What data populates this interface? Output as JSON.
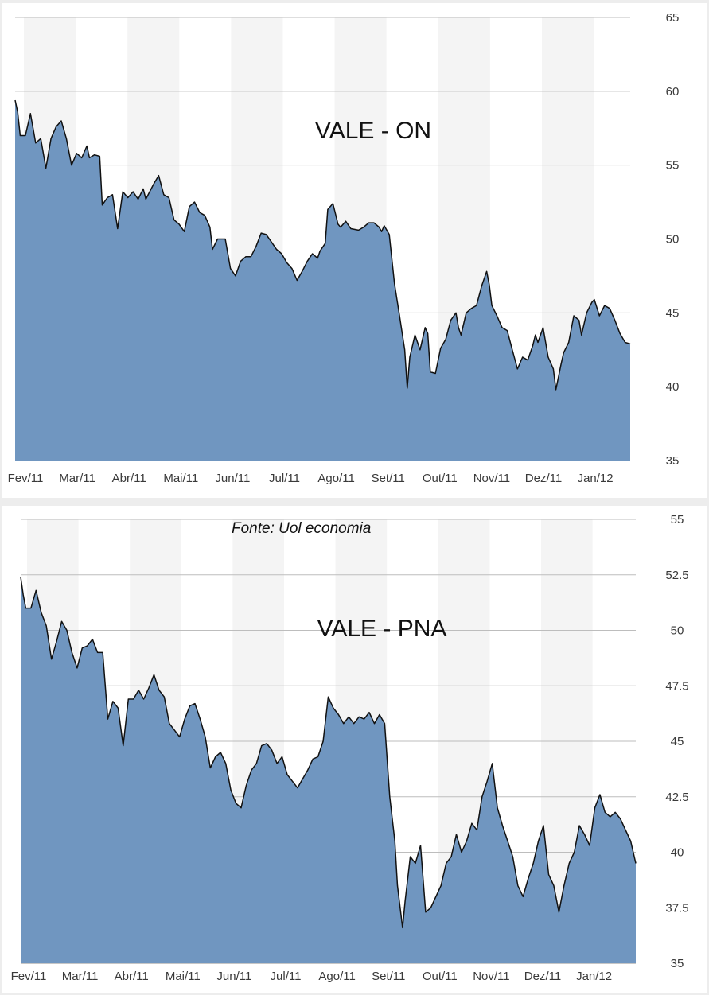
{
  "source_note": "Fonte: Uol economia",
  "colors": {
    "area_fill": "#7096c0",
    "line": "#111111",
    "band": "#f4f4f4",
    "grid": "#bdbdbd"
  },
  "chart_data": [
    {
      "type": "area",
      "title": "VALE - ON",
      "months": [
        "Fev/11",
        "Mar/11",
        "Abr/11",
        "Mai/11",
        "Jun/11",
        "Jul/11",
        "Ago/11",
        "Set/11",
        "Out/11",
        "Nov/11",
        "Dez/11",
        "Jan/12"
      ],
      "yticks": [
        "35",
        "40",
        "45",
        "50",
        "55",
        "60",
        "65"
      ],
      "ylim": [
        35,
        65
      ],
      "x_range": [
        -0.2,
        11.8
      ],
      "grid": true,
      "series": [
        {
          "points": [
            [
              -0.2,
              59.4
            ],
            [
              -0.15,
              58.6
            ],
            [
              -0.1,
              57.0
            ],
            [
              0.0,
              57.0
            ],
            [
              0.1,
              58.5
            ],
            [
              0.2,
              56.5
            ],
            [
              0.3,
              56.8
            ],
            [
              0.4,
              54.8
            ],
            [
              0.5,
              56.8
            ],
            [
              0.6,
              57.6
            ],
            [
              0.7,
              58.0
            ],
            [
              0.8,
              56.8
            ],
            [
              0.9,
              55.0
            ],
            [
              1.0,
              55.8
            ],
            [
              1.1,
              55.5
            ],
            [
              1.2,
              56.3
            ],
            [
              1.25,
              55.5
            ],
            [
              1.35,
              55.7
            ],
            [
              1.45,
              55.6
            ],
            [
              1.5,
              52.3
            ],
            [
              1.6,
              52.8
            ],
            [
              1.7,
              53.0
            ],
            [
              1.8,
              50.7
            ],
            [
              1.9,
              53.2
            ],
            [
              2.0,
              52.8
            ],
            [
              2.1,
              53.2
            ],
            [
              2.2,
              52.7
            ],
            [
              2.3,
              53.4
            ],
            [
              2.35,
              52.7
            ],
            [
              2.5,
              53.7
            ],
            [
              2.6,
              54.3
            ],
            [
              2.7,
              53.0
            ],
            [
              2.8,
              52.8
            ],
            [
              2.9,
              51.3
            ],
            [
              3.0,
              51.0
            ],
            [
              3.1,
              50.5
            ],
            [
              3.2,
              52.2
            ],
            [
              3.3,
              52.5
            ],
            [
              3.4,
              51.8
            ],
            [
              3.5,
              51.6
            ],
            [
              3.6,
              50.8
            ],
            [
              3.65,
              49.3
            ],
            [
              3.75,
              50.0
            ],
            [
              3.9,
              50.0
            ],
            [
              4.0,
              48.0
            ],
            [
              4.1,
              47.5
            ],
            [
              4.2,
              48.5
            ],
            [
              4.3,
              48.8
            ],
            [
              4.4,
              48.8
            ],
            [
              4.5,
              49.5
            ],
            [
              4.6,
              50.4
            ],
            [
              4.7,
              50.3
            ],
            [
              4.8,
              49.8
            ],
            [
              4.9,
              49.3
            ],
            [
              5.0,
              49.0
            ],
            [
              5.1,
              48.4
            ],
            [
              5.2,
              48.0
            ],
            [
              5.3,
              47.2
            ],
            [
              5.4,
              47.8
            ],
            [
              5.5,
              48.5
            ],
            [
              5.6,
              49.0
            ],
            [
              5.7,
              48.7
            ],
            [
              5.75,
              49.2
            ],
            [
              5.85,
              49.7
            ],
            [
              5.9,
              52.0
            ],
            [
              6.0,
              52.4
            ],
            [
              6.1,
              51.0
            ],
            [
              6.15,
              50.8
            ],
            [
              6.25,
              51.2
            ],
            [
              6.35,
              50.7
            ],
            [
              6.5,
              50.6
            ],
            [
              6.6,
              50.8
            ],
            [
              6.7,
              51.1
            ],
            [
              6.8,
              51.1
            ],
            [
              6.9,
              50.8
            ],
            [
              6.95,
              50.5
            ],
            [
              7.0,
              50.9
            ],
            [
              7.1,
              50.3
            ],
            [
              7.2,
              47.0
            ],
            [
              7.3,
              44.8
            ],
            [
              7.4,
              42.5
            ],
            [
              7.45,
              39.9
            ],
            [
              7.5,
              42.0
            ],
            [
              7.6,
              43.5
            ],
            [
              7.7,
              42.5
            ],
            [
              7.8,
              44.0
            ],
            [
              7.85,
              43.6
            ],
            [
              7.9,
              41.0
            ],
            [
              8.0,
              40.9
            ],
            [
              8.1,
              42.6
            ],
            [
              8.2,
              43.2
            ],
            [
              8.3,
              44.5
            ],
            [
              8.4,
              45.0
            ],
            [
              8.45,
              44.0
            ],
            [
              8.5,
              43.5
            ],
            [
              8.6,
              45.0
            ],
            [
              8.7,
              45.3
            ],
            [
              8.8,
              45.5
            ],
            [
              8.9,
              46.8
            ],
            [
              9.0,
              47.8
            ],
            [
              9.05,
              46.9
            ],
            [
              9.1,
              45.5
            ],
            [
              9.2,
              44.8
            ],
            [
              9.3,
              44.0
            ],
            [
              9.4,
              43.8
            ],
            [
              9.5,
              42.5
            ],
            [
              9.6,
              41.2
            ],
            [
              9.7,
              42.0
            ],
            [
              9.8,
              41.8
            ],
            [
              9.9,
              42.8
            ],
            [
              9.95,
              43.5
            ],
            [
              10.0,
              43.0
            ],
            [
              10.1,
              44.0
            ],
            [
              10.2,
              42.0
            ],
            [
              10.3,
              41.2
            ],
            [
              10.35,
              39.8
            ],
            [
              10.45,
              41.5
            ],
            [
              10.5,
              42.3
            ],
            [
              10.6,
              43.0
            ],
            [
              10.7,
              44.8
            ],
            [
              10.8,
              44.5
            ],
            [
              10.85,
              43.5
            ],
            [
              10.95,
              45.0
            ],
            [
              11.05,
              45.7
            ],
            [
              11.1,
              45.9
            ],
            [
              11.2,
              44.8
            ],
            [
              11.3,
              45.5
            ],
            [
              11.4,
              45.3
            ],
            [
              11.5,
              44.5
            ],
            [
              11.6,
              43.6
            ],
            [
              11.7,
              43.0
            ],
            [
              11.8,
              42.9
            ]
          ]
        }
      ]
    },
    {
      "type": "area",
      "title": "VALE - PNA",
      "months": [
        "Fev/11",
        "Mar/11",
        "Abr/11",
        "Mai/11",
        "Jun/11",
        "Jul/11",
        "Ago/11",
        "Set/11",
        "Out/11",
        "Nov/11",
        "Dez/11",
        "Jan/12"
      ],
      "yticks": [
        "35",
        "37.5",
        "40",
        "42.5",
        "45",
        "47.5",
        "50",
        "52.5",
        "55"
      ],
      "ylim": [
        35,
        55
      ],
      "x_range": [
        -0.2,
        11.8
      ],
      "grid": true,
      "series": [
        {
          "points": [
            [
              -0.2,
              52.4
            ],
            [
              -0.15,
              51.6
            ],
            [
              -0.1,
              51.0
            ],
            [
              0.0,
              51.0
            ],
            [
              0.1,
              51.8
            ],
            [
              0.2,
              50.8
            ],
            [
              0.3,
              50.2
            ],
            [
              0.4,
              48.7
            ],
            [
              0.5,
              49.5
            ],
            [
              0.6,
              50.4
            ],
            [
              0.7,
              50.0
            ],
            [
              0.8,
              49.0
            ],
            [
              0.9,
              48.3
            ],
            [
              1.0,
              49.2
            ],
            [
              1.1,
              49.3
            ],
            [
              1.2,
              49.6
            ],
            [
              1.3,
              49.0
            ],
            [
              1.4,
              49.0
            ],
            [
              1.5,
              46.0
            ],
            [
              1.6,
              46.8
            ],
            [
              1.7,
              46.5
            ],
            [
              1.8,
              44.8
            ],
            [
              1.9,
              46.9
            ],
            [
              2.0,
              46.9
            ],
            [
              2.1,
              47.3
            ],
            [
              2.2,
              46.9
            ],
            [
              2.3,
              47.4
            ],
            [
              2.4,
              48.0
            ],
            [
              2.5,
              47.3
            ],
            [
              2.6,
              47.0
            ],
            [
              2.7,
              45.8
            ],
            [
              2.8,
              45.5
            ],
            [
              2.9,
              45.2
            ],
            [
              3.0,
              46.0
            ],
            [
              3.1,
              46.6
            ],
            [
              3.2,
              46.7
            ],
            [
              3.3,
              46.0
            ],
            [
              3.4,
              45.2
            ],
            [
              3.5,
              43.8
            ],
            [
              3.6,
              44.3
            ],
            [
              3.7,
              44.5
            ],
            [
              3.8,
              44.0
            ],
            [
              3.9,
              42.8
            ],
            [
              4.0,
              42.2
            ],
            [
              4.1,
              42.0
            ],
            [
              4.2,
              43.0
            ],
            [
              4.3,
              43.7
            ],
            [
              4.4,
              44.0
            ],
            [
              4.5,
              44.8
            ],
            [
              4.6,
              44.9
            ],
            [
              4.7,
              44.6
            ],
            [
              4.8,
              44.0
            ],
            [
              4.9,
              44.3
            ],
            [
              5.0,
              43.5
            ],
            [
              5.1,
              43.2
            ],
            [
              5.2,
              42.9
            ],
            [
              5.3,
              43.3
            ],
            [
              5.4,
              43.7
            ],
            [
              5.5,
              44.2
            ],
            [
              5.6,
              44.3
            ],
            [
              5.7,
              45.0
            ],
            [
              5.8,
              47.0
            ],
            [
              5.9,
              46.5
            ],
            [
              6.0,
              46.2
            ],
            [
              6.1,
              45.8
            ],
            [
              6.2,
              46.1
            ],
            [
              6.3,
              45.8
            ],
            [
              6.4,
              46.1
            ],
            [
              6.5,
              46.0
            ],
            [
              6.6,
              46.3
            ],
            [
              6.7,
              45.8
            ],
            [
              6.8,
              46.2
            ],
            [
              6.9,
              45.8
            ],
            [
              7.0,
              42.5
            ],
            [
              7.1,
              40.5
            ],
            [
              7.15,
              38.5
            ],
            [
              7.25,
              36.6
            ],
            [
              7.3,
              37.8
            ],
            [
              7.4,
              39.8
            ],
            [
              7.5,
              39.5
            ],
            [
              7.6,
              40.3
            ],
            [
              7.7,
              37.3
            ],
            [
              7.8,
              37.5
            ],
            [
              7.9,
              38.0
            ],
            [
              8.0,
              38.5
            ],
            [
              8.1,
              39.5
            ],
            [
              8.2,
              39.8
            ],
            [
              8.3,
              40.8
            ],
            [
              8.4,
              40.0
            ],
            [
              8.5,
              40.5
            ],
            [
              8.6,
              41.3
            ],
            [
              8.7,
              41.0
            ],
            [
              8.8,
              42.5
            ],
            [
              8.9,
              43.2
            ],
            [
              9.0,
              44.0
            ],
            [
              9.1,
              42.0
            ],
            [
              9.2,
              41.2
            ],
            [
              9.3,
              40.5
            ],
            [
              9.4,
              39.8
            ],
            [
              9.5,
              38.5
            ],
            [
              9.6,
              38.0
            ],
            [
              9.7,
              38.8
            ],
            [
              9.8,
              39.5
            ],
            [
              9.9,
              40.5
            ],
            [
              10.0,
              41.2
            ],
            [
              10.1,
              39.0
            ],
            [
              10.2,
              38.5
            ],
            [
              10.3,
              37.3
            ],
            [
              10.4,
              38.5
            ],
            [
              10.5,
              39.5
            ],
            [
              10.6,
              40.0
            ],
            [
              10.7,
              41.2
            ],
            [
              10.8,
              40.8
            ],
            [
              10.9,
              40.3
            ],
            [
              11.0,
              42.0
            ],
            [
              11.1,
              42.6
            ],
            [
              11.2,
              41.8
            ],
            [
              11.3,
              41.6
            ],
            [
              11.4,
              41.8
            ],
            [
              11.5,
              41.5
            ],
            [
              11.6,
              41.0
            ],
            [
              11.7,
              40.5
            ],
            [
              11.8,
              39.5
            ]
          ]
        }
      ]
    }
  ]
}
